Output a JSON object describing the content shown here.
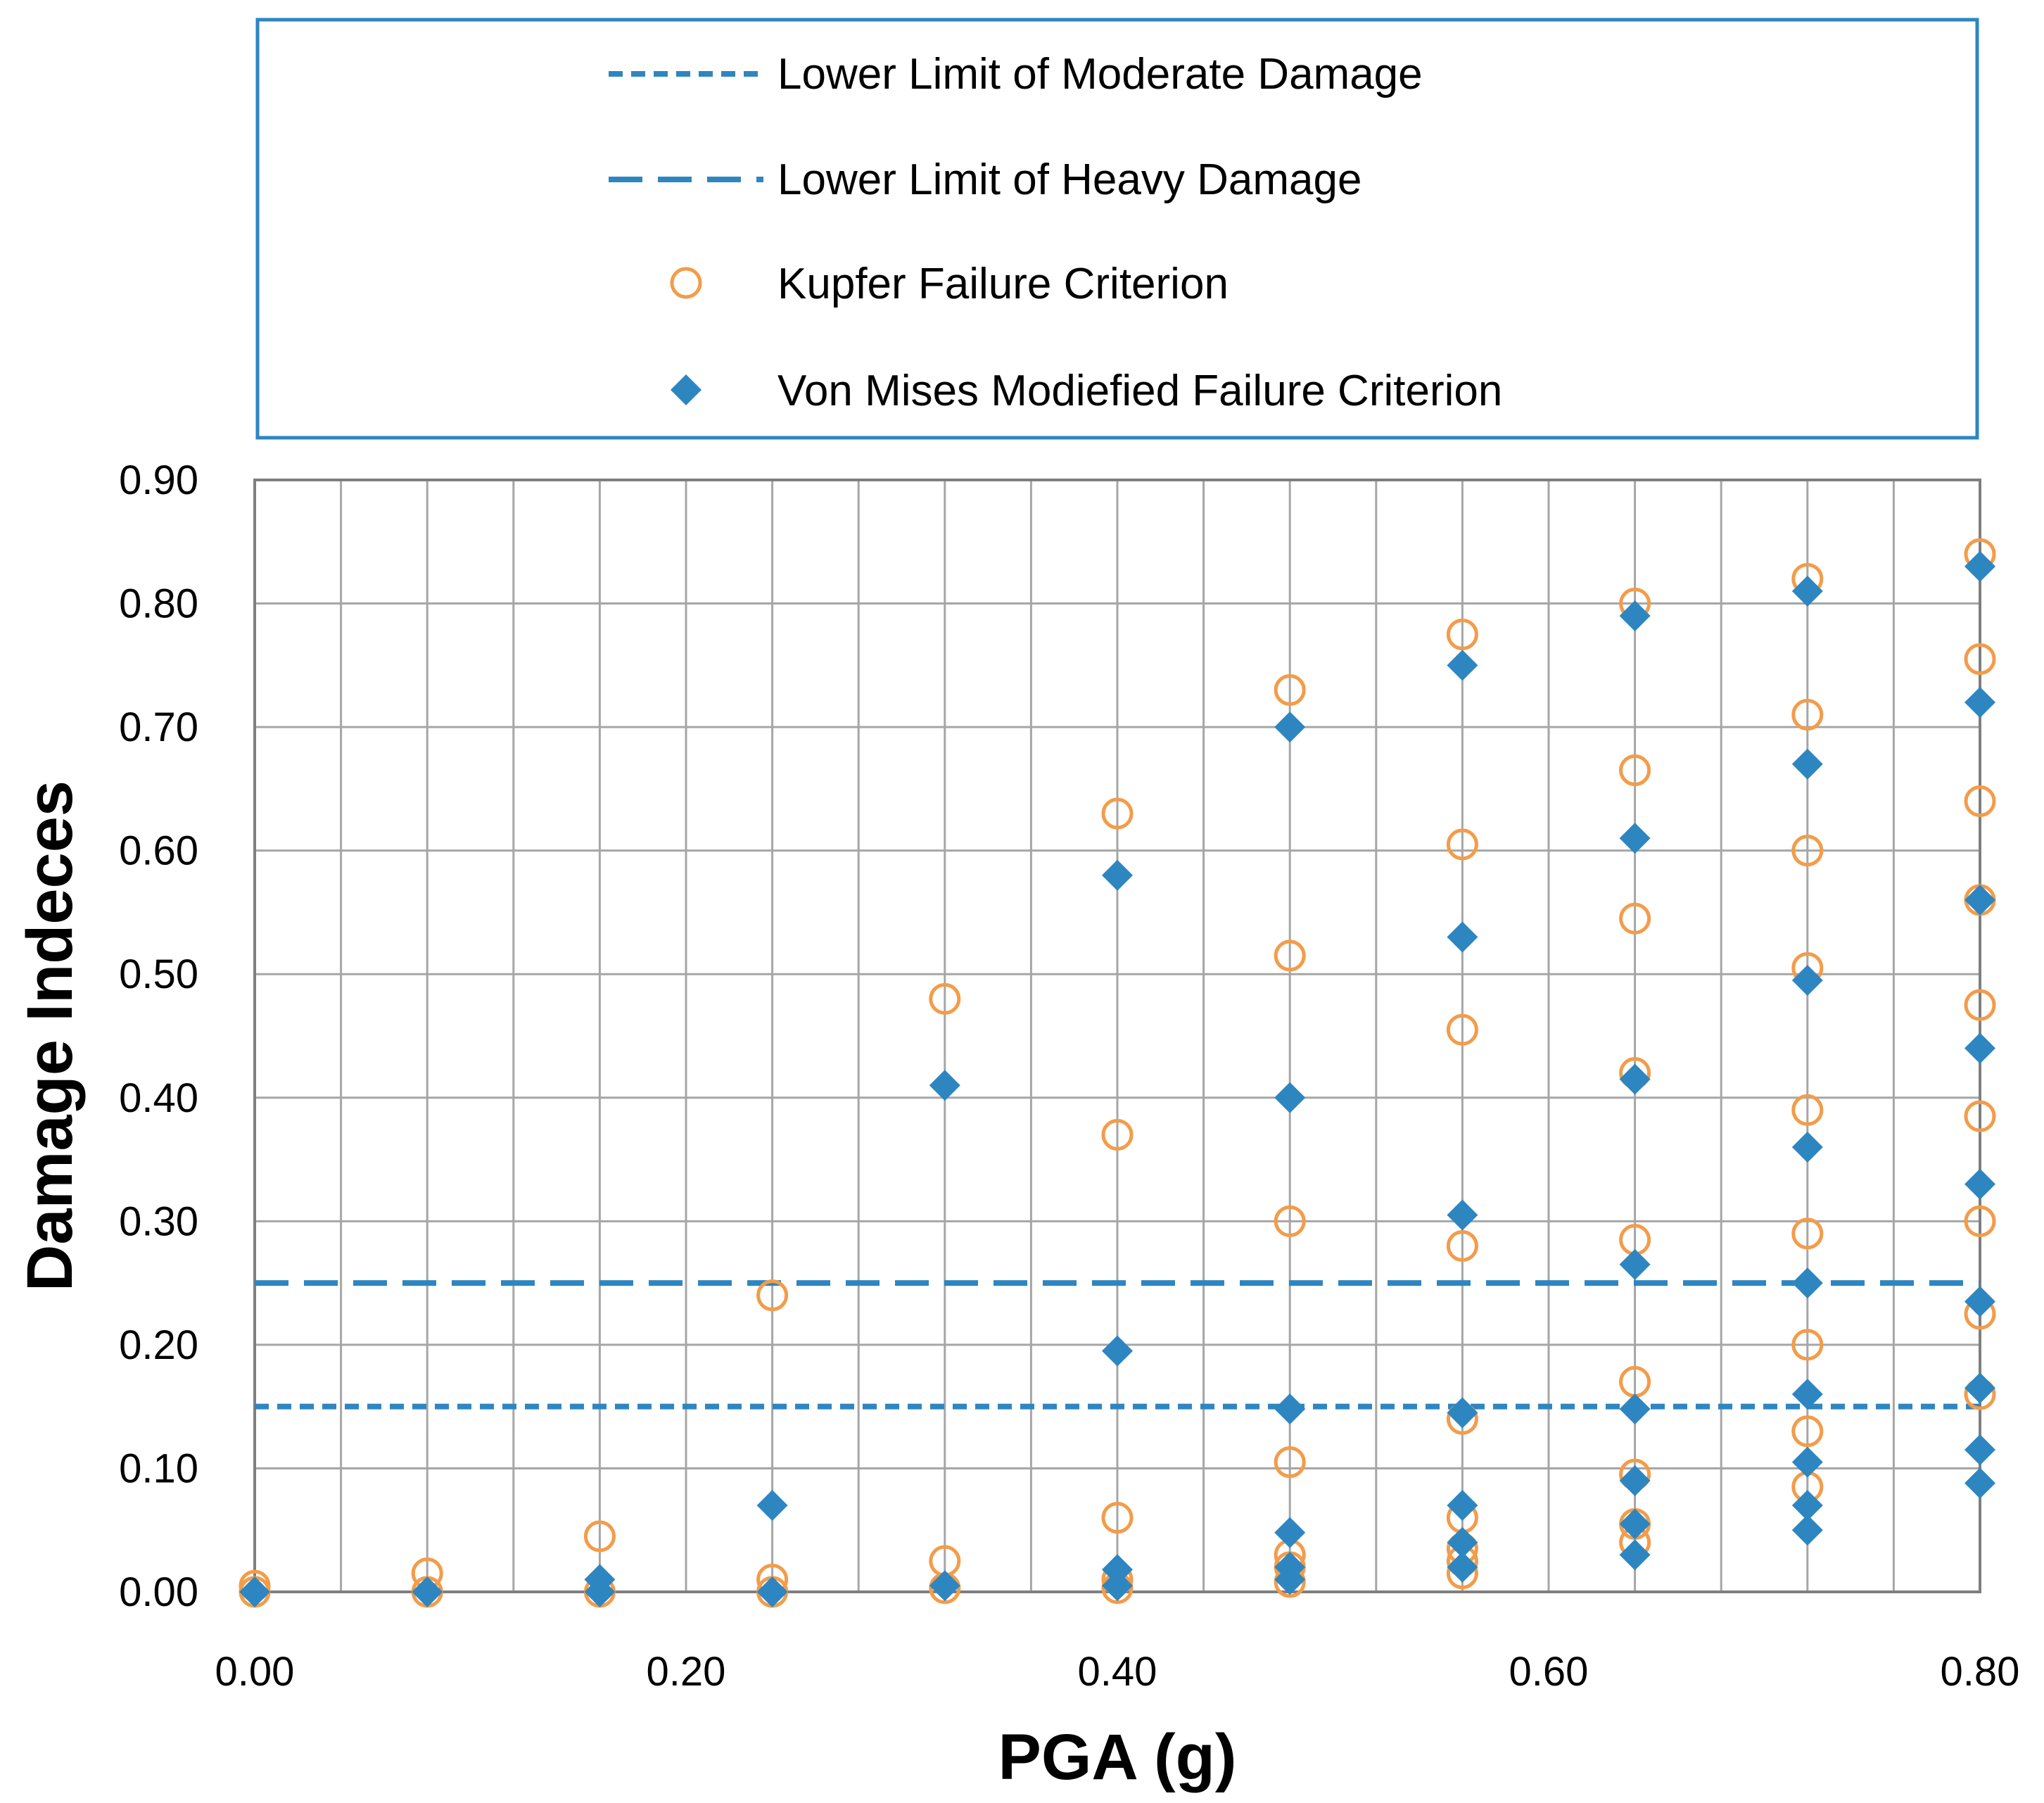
{
  "chart_data": {
    "type": "scatter",
    "xlabel": "PGA (g)",
    "ylabel": "Damage Indeces",
    "xlim": [
      0,
      0.8
    ],
    "ylim": [
      0,
      0.9
    ],
    "x_grid_step": 0.04,
    "y_grid_step": 0.1,
    "x_ticks": [
      "0.00",
      "0.20",
      "0.40",
      "0.60",
      "0.80"
    ],
    "x_tick_values": [
      0,
      0.2,
      0.4,
      0.6,
      0.8
    ],
    "y_ticks": [
      "0.00",
      "0.10",
      "0.20",
      "0.30",
      "0.40",
      "0.50",
      "0.60",
      "0.70",
      "0.80",
      "0.90"
    ],
    "y_tick_values": [
      0,
      0.1,
      0.2,
      0.3,
      0.4,
      0.5,
      0.6,
      0.7,
      0.8,
      0.9
    ],
    "grid": true,
    "legend_position": "top",
    "thresholds": [
      {
        "name": "Lower Limit of Moderate Damage",
        "value": 0.15,
        "style": "short-dash",
        "color": "#2E86C1"
      },
      {
        "name": "Lower Limit of Heavy Damage",
        "value": 0.25,
        "style": "long-dash",
        "color": "#2E86C1"
      }
    ],
    "series": [
      {
        "name": "Kupfer Failure Criterion",
        "marker": "open-circle",
        "color": "#F39C4A",
        "points": [
          [
            0.0,
            0.005
          ],
          [
            0.0,
            0.0
          ],
          [
            0.08,
            0.015
          ],
          [
            0.08,
            0.0
          ],
          [
            0.16,
            0.045
          ],
          [
            0.16,
            0.0
          ],
          [
            0.24,
            0.24
          ],
          [
            0.24,
            0.01
          ],
          [
            0.24,
            0.0
          ],
          [
            0.32,
            0.48
          ],
          [
            0.32,
            0.025
          ],
          [
            0.32,
            0.003
          ],
          [
            0.4,
            0.63
          ],
          [
            0.4,
            0.37
          ],
          [
            0.4,
            0.06
          ],
          [
            0.4,
            0.01
          ],
          [
            0.4,
            0.003
          ],
          [
            0.48,
            0.73
          ],
          [
            0.48,
            0.515
          ],
          [
            0.48,
            0.3
          ],
          [
            0.48,
            0.105
          ],
          [
            0.48,
            0.03
          ],
          [
            0.48,
            0.02
          ],
          [
            0.48,
            0.008
          ],
          [
            0.56,
            0.775
          ],
          [
            0.56,
            0.605
          ],
          [
            0.56,
            0.455
          ],
          [
            0.56,
            0.28
          ],
          [
            0.56,
            0.14
          ],
          [
            0.56,
            0.06
          ],
          [
            0.56,
            0.035
          ],
          [
            0.56,
            0.025
          ],
          [
            0.56,
            0.015
          ],
          [
            0.64,
            0.8
          ],
          [
            0.64,
            0.665
          ],
          [
            0.64,
            0.545
          ],
          [
            0.64,
            0.42
          ],
          [
            0.64,
            0.285
          ],
          [
            0.64,
            0.17
          ],
          [
            0.64,
            0.095
          ],
          [
            0.64,
            0.055
          ],
          [
            0.64,
            0.04
          ],
          [
            0.72,
            0.82
          ],
          [
            0.72,
            0.71
          ],
          [
            0.72,
            0.6
          ],
          [
            0.72,
            0.505
          ],
          [
            0.72,
            0.39
          ],
          [
            0.72,
            0.29
          ],
          [
            0.72,
            0.2
          ],
          [
            0.72,
            0.13
          ],
          [
            0.72,
            0.085
          ],
          [
            0.8,
            0.84
          ],
          [
            0.8,
            0.755
          ],
          [
            0.8,
            0.64
          ],
          [
            0.8,
            0.56
          ],
          [
            0.8,
            0.475
          ],
          [
            0.8,
            0.385
          ],
          [
            0.8,
            0.3
          ],
          [
            0.8,
            0.225
          ],
          [
            0.8,
            0.16
          ]
        ]
      },
      {
        "name": "Von Mises Modiefied Failure Criterion",
        "marker": "filled-diamond",
        "color": "#2E86C1",
        "points": [
          [
            0.0,
            0.0
          ],
          [
            0.08,
            0.0
          ],
          [
            0.16,
            0.01
          ],
          [
            0.16,
            0.0
          ],
          [
            0.24,
            0.07
          ],
          [
            0.24,
            0.0
          ],
          [
            0.32,
            0.41
          ],
          [
            0.32,
            0.005
          ],
          [
            0.4,
            0.58
          ],
          [
            0.4,
            0.195
          ],
          [
            0.4,
            0.018
          ],
          [
            0.4,
            0.005
          ],
          [
            0.48,
            0.7
          ],
          [
            0.48,
            0.4
          ],
          [
            0.48,
            0.148
          ],
          [
            0.48,
            0.048
          ],
          [
            0.48,
            0.02
          ],
          [
            0.48,
            0.01
          ],
          [
            0.56,
            0.75
          ],
          [
            0.56,
            0.53
          ],
          [
            0.56,
            0.305
          ],
          [
            0.56,
            0.145
          ],
          [
            0.56,
            0.07
          ],
          [
            0.56,
            0.04
          ],
          [
            0.56,
            0.02
          ],
          [
            0.64,
            0.79
          ],
          [
            0.64,
            0.61
          ],
          [
            0.64,
            0.415
          ],
          [
            0.64,
            0.265
          ],
          [
            0.64,
            0.148
          ],
          [
            0.64,
            0.09
          ],
          [
            0.64,
            0.055
          ],
          [
            0.64,
            0.03
          ],
          [
            0.72,
            0.81
          ],
          [
            0.72,
            0.67
          ],
          [
            0.72,
            0.495
          ],
          [
            0.72,
            0.36
          ],
          [
            0.72,
            0.25
          ],
          [
            0.72,
            0.16
          ],
          [
            0.72,
            0.105
          ],
          [
            0.72,
            0.07
          ],
          [
            0.72,
            0.05
          ],
          [
            0.8,
            0.83
          ],
          [
            0.8,
            0.72
          ],
          [
            0.8,
            0.56
          ],
          [
            0.8,
            0.44
          ],
          [
            0.8,
            0.33
          ],
          [
            0.8,
            0.235
          ],
          [
            0.8,
            0.165
          ],
          [
            0.8,
            0.115
          ],
          [
            0.8,
            0.088
          ]
        ]
      }
    ]
  }
}
